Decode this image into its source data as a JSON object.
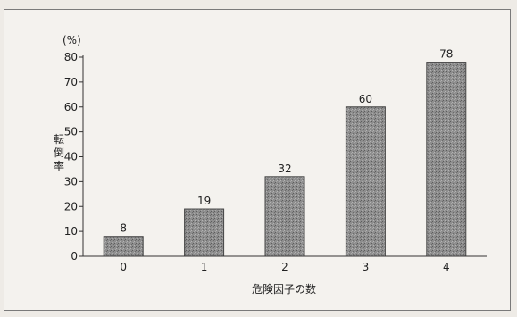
{
  "chart_data": {
    "type": "bar",
    "categories": [
      "0",
      "1",
      "2",
      "3",
      "4"
    ],
    "values": [
      8,
      19,
      32,
      60,
      78
    ],
    "data_labels": [
      "8",
      "19",
      "32",
      "60",
      "78"
    ],
    "ylim": [
      0,
      80
    ],
    "yticks": [
      0,
      10,
      20,
      30,
      40,
      50,
      60,
      70,
      80
    ],
    "yunit": "(%)",
    "ylabel": "転倒率",
    "xlabel": "危険因子の数",
    "grid": false,
    "bar_color": "#8c8c8c"
  }
}
